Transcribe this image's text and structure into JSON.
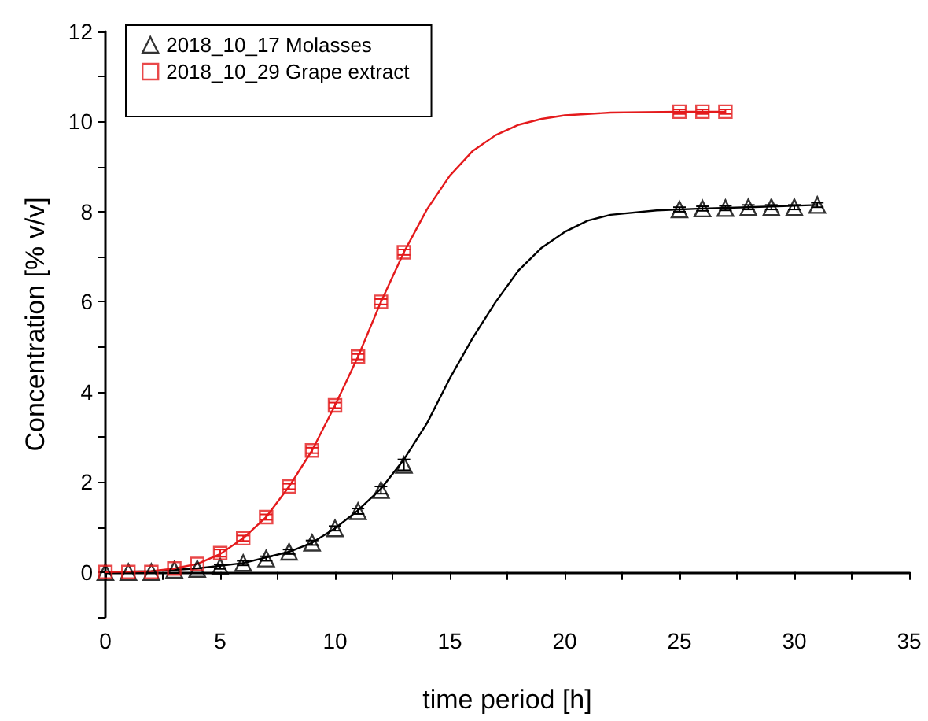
{
  "chart_data": {
    "type": "scatter",
    "xlabel": "time period [h]",
    "ylabel": "Concentration [% v/v]",
    "xlim": [
      0,
      35
    ],
    "ylim": [
      -1,
      12
    ],
    "xticks": [
      0,
      {
        "value": 2.5,
        "label": null
      },
      5,
      {
        "value": 7.5,
        "label": null
      },
      10,
      {
        "value": 12.5,
        "label": null
      },
      15,
      {
        "value": 17.5,
        "label": null
      },
      20,
      {
        "value": 22.5,
        "label": null
      },
      25,
      {
        "value": 27.5,
        "label": null
      },
      30,
      {
        "value": 32.5,
        "label": null
      },
      35
    ],
    "yticks": [
      {
        "value": -1,
        "label": null
      },
      0,
      {
        "value": 1,
        "label": null
      },
      2,
      {
        "value": 3,
        "label": null
      },
      4,
      {
        "value": 5,
        "label": null
      },
      6,
      {
        "value": 7,
        "label": null
      },
      8,
      {
        "value": 9,
        "label": null
      },
      10,
      {
        "value": 11,
        "label": null
      },
      12
    ],
    "grid": false,
    "legend": "top left",
    "series": [
      {
        "name": "2018_10_17 Molasses",
        "color": "#000000",
        "marker": "triangle",
        "x": [
          0,
          1,
          2,
          3,
          4,
          5,
          6,
          7,
          8,
          9,
          10,
          11,
          12,
          13,
          25,
          26,
          27,
          28,
          29,
          30,
          31
        ],
        "values": [
          0,
          0,
          0,
          0.05,
          0.07,
          0.12,
          0.2,
          0.3,
          0.45,
          0.65,
          0.97,
          1.35,
          1.82,
          2.38,
          8.05,
          8.07,
          8.08,
          8.1,
          8.1,
          8.1,
          8.15
        ],
        "errors": [
          null,
          null,
          null,
          null,
          null,
          0.05,
          0.05,
          0.05,
          0.05,
          0.05,
          0.05,
          0.06,
          0.08,
          0.12,
          0.05,
          0.05,
          0.05,
          0.05,
          0.05,
          0.05,
          0.05
        ]
      },
      {
        "name": "2018_10_29 Grape extract",
        "color": "#e41a1c",
        "marker": "square",
        "x": [
          0,
          1,
          2,
          3,
          4,
          5,
          6,
          7,
          8,
          9,
          10,
          11,
          12,
          13,
          25,
          26,
          27
        ],
        "values": [
          0,
          0,
          0,
          0.08,
          0.18,
          0.42,
          0.75,
          1.22,
          1.9,
          2.7,
          3.7,
          4.78,
          6.0,
          7.1,
          10.22,
          10.22,
          10.22
        ],
        "errors": [
          null,
          null,
          null,
          null,
          null,
          0.08,
          0.06,
          0.06,
          0.06,
          0.06,
          0.06,
          0.06,
          0.06,
          0.06,
          0.05,
          0.05,
          0.05
        ]
      },
      {
        "type": "line",
        "color": "#000000",
        "marker": "none",
        "x": [
          0,
          2,
          4,
          6,
          8,
          9,
          10,
          11,
          12,
          13,
          14,
          15,
          16,
          17,
          18,
          19,
          20,
          21,
          22,
          24,
          26,
          28,
          31
        ],
        "values": [
          0,
          0.02,
          0.08,
          0.2,
          0.45,
          0.65,
          0.97,
          1.37,
          1.85,
          2.5,
          3.3,
          4.3,
          5.2,
          6.0,
          6.7,
          7.2,
          7.55,
          7.8,
          7.93,
          8.03,
          8.07,
          8.1,
          8.15
        ]
      },
      {
        "type": "line",
        "color": "#e41a1c",
        "marker": "none",
        "x": [
          0,
          2,
          3,
          4,
          5,
          6,
          7,
          8,
          9,
          10,
          11,
          12,
          13,
          14,
          15,
          16,
          17,
          18,
          19,
          20,
          22,
          25,
          27
        ],
        "values": [
          0,
          0.02,
          0.08,
          0.18,
          0.4,
          0.75,
          1.22,
          1.9,
          2.7,
          3.7,
          4.78,
          6.0,
          7.1,
          8.05,
          8.8,
          9.35,
          9.7,
          9.93,
          10.06,
          10.14,
          10.2,
          10.22,
          10.22
        ]
      }
    ]
  }
}
